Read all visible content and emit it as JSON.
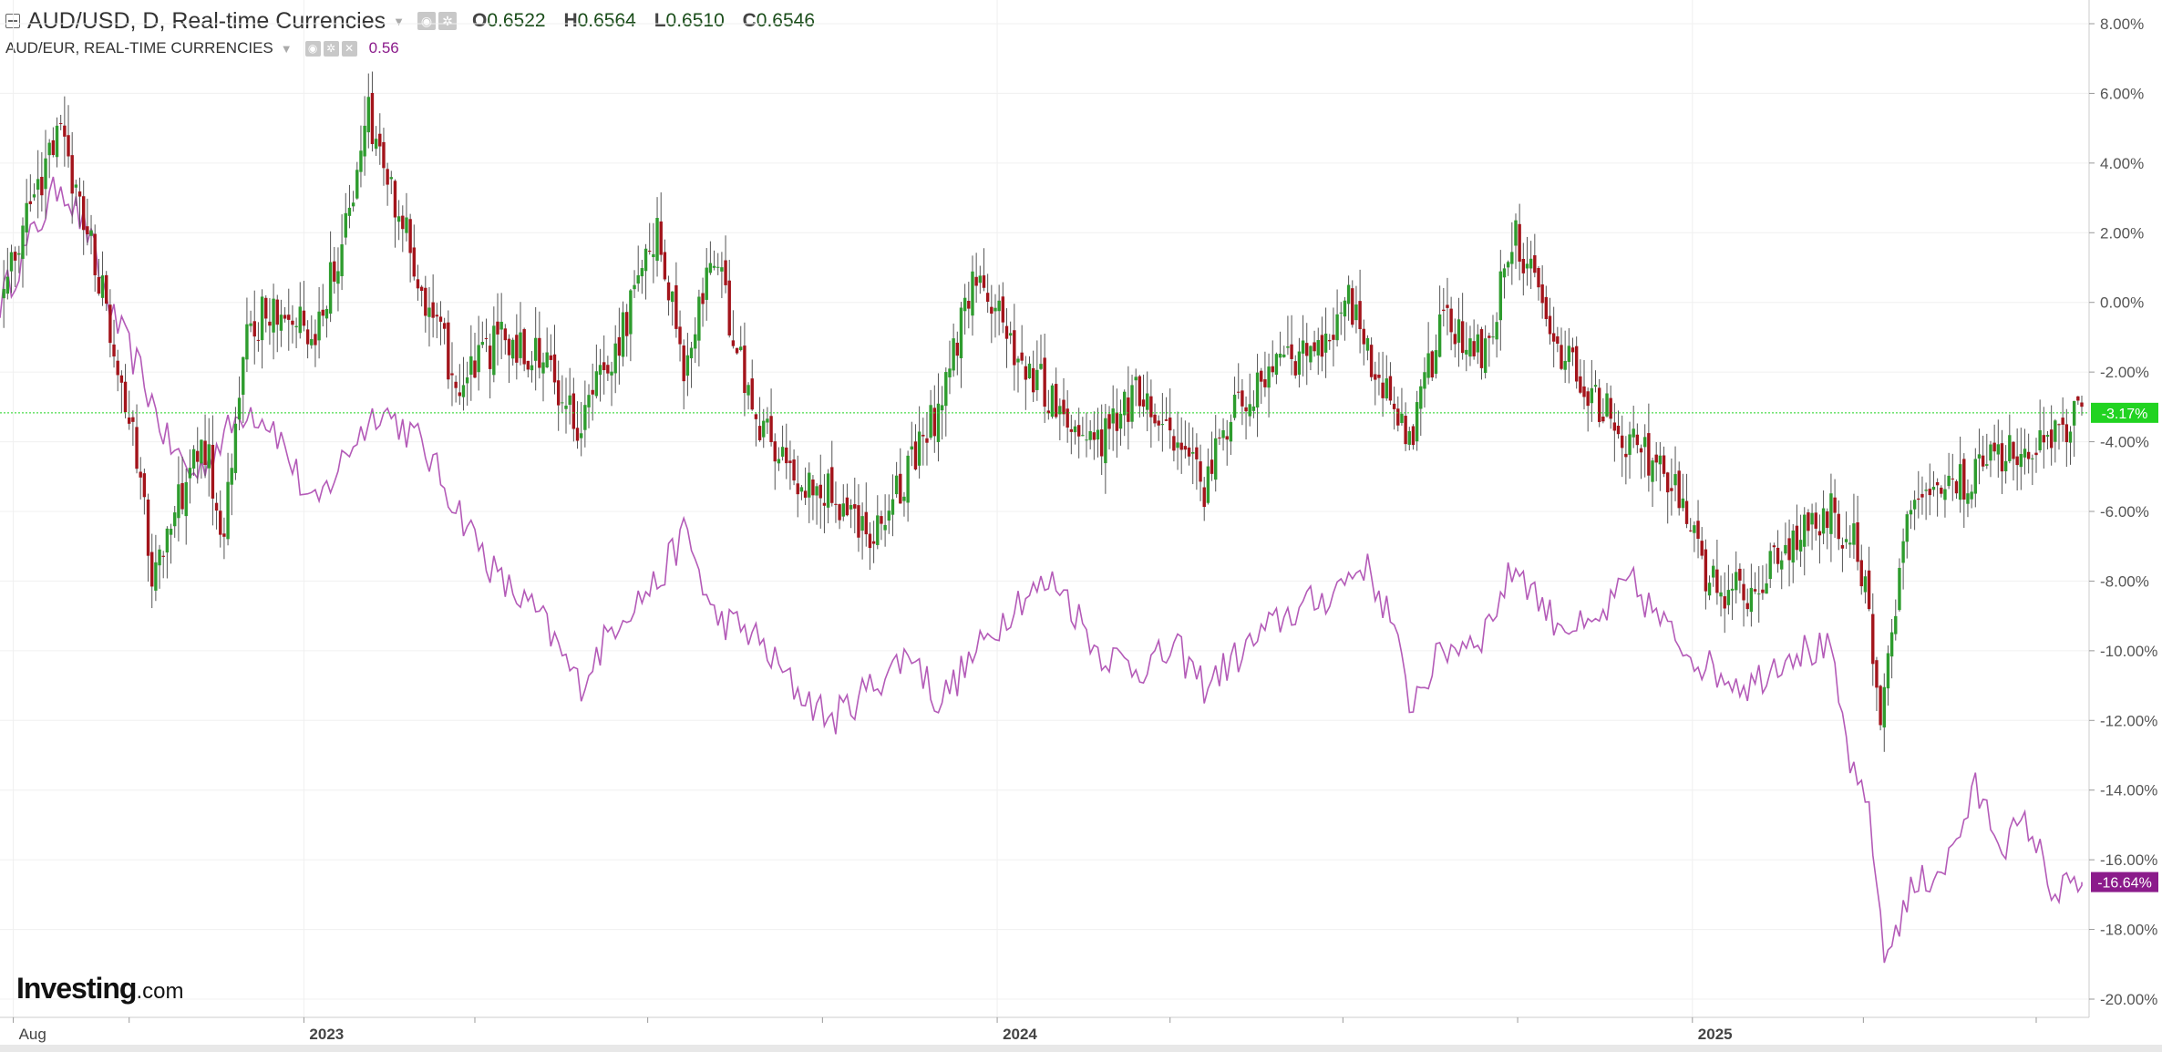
{
  "legend": {
    "symbol": "AUD/USD, D, Real-time Currencies",
    "ohlc": [
      {
        "k": "O",
        "v": "0.6522"
      },
      {
        "k": "H",
        "v": "0.6564"
      },
      {
        "k": "L",
        "v": "0.6510"
      },
      {
        "k": "C",
        "v": "0.6546"
      }
    ],
    "compare_symbol": "AUD/EUR, REAL-TIME CURRENCIES",
    "compare_value": "0.56"
  },
  "logo": {
    "main": "Investing",
    "suffix": ".com"
  },
  "colors": {
    "up": "#2e9c2e",
    "down": "#a3141b",
    "wick": "#555555",
    "compare": "#b45bb8",
    "last_main": "#21d321",
    "last_compare": "#8b1b8b",
    "grid": "#f0f0f0"
  },
  "chart_data": {
    "type": "candlestick-with-comparison-line",
    "y_axis": {
      "unit": "percent",
      "min": -20,
      "max": 8,
      "step": 2,
      "tick_labels": [
        "8.00%",
        "6.00%",
        "4.00%",
        "2.00%",
        "0.00%",
        "-2.00%",
        "-4.00%",
        "-6.00%",
        "-8.00%",
        "-10.00%",
        "-12.00%",
        "-14.00%",
        "-16.00%",
        "-18.00%",
        "-20.00%"
      ]
    },
    "x_axis": {
      "start": "2022-07-25",
      "end": "2025-07-25",
      "labels": [
        {
          "text": "Aug",
          "date": "2022-08-01"
        },
        {
          "text": "2023",
          "date": "2023-01-01"
        },
        {
          "text": "2024",
          "date": "2024-01-01"
        },
        {
          "text": "2025",
          "date": "2025-01-01"
        }
      ],
      "minor_ticks": [
        "2022-10-01",
        "2023-04-01",
        "2023-07-01",
        "2023-10-01",
        "2024-04-01",
        "2024-07-01",
        "2024-10-01",
        "2025-04-01",
        "2025-07-01"
      ]
    },
    "series": [
      {
        "name": "AUD/USD",
        "kind": "candles",
        "last_value": -3.17,
        "last_label": "-3.17%",
        "path": [
          {
            "date": "2022-07-25",
            "v": 0
          },
          {
            "date": "2022-08-12",
            "v": 3
          },
          {
            "date": "2022-08-26",
            "v": 5
          },
          {
            "date": "2022-09-09",
            "v": 2
          },
          {
            "date": "2022-09-23",
            "v": -1
          },
          {
            "date": "2022-10-07",
            "v": -5
          },
          {
            "date": "2022-10-14",
            "v": -8
          },
          {
            "date": "2022-10-28",
            "v": -5.5
          },
          {
            "date": "2022-11-11",
            "v": -4
          },
          {
            "date": "2022-11-18",
            "v": -7
          },
          {
            "date": "2022-12-02",
            "v": -1
          },
          {
            "date": "2022-12-16",
            "v": 0
          },
          {
            "date": "2023-01-06",
            "v": -1
          },
          {
            "date": "2023-01-27",
            "v": 3
          },
          {
            "date": "2023-02-03",
            "v": 5.5
          },
          {
            "date": "2023-02-24",
            "v": 2
          },
          {
            "date": "2023-03-10",
            "v": -0.5
          },
          {
            "date": "2023-03-24",
            "v": -2.5
          },
          {
            "date": "2023-04-14",
            "v": -1
          },
          {
            "date": "2023-05-05",
            "v": -1.5
          },
          {
            "date": "2023-05-26",
            "v": -3.5
          },
          {
            "date": "2023-06-16",
            "v": -1
          },
          {
            "date": "2023-07-07",
            "v": 2
          },
          {
            "date": "2023-07-21",
            "v": -2
          },
          {
            "date": "2023-08-04",
            "v": 1.5
          },
          {
            "date": "2023-08-25",
            "v": -3
          },
          {
            "date": "2023-09-15",
            "v": -5
          },
          {
            "date": "2023-10-06",
            "v": -5.5
          },
          {
            "date": "2023-10-27",
            "v": -6.5
          },
          {
            "date": "2023-11-10",
            "v": -5.5
          },
          {
            "date": "2023-12-01",
            "v": -3
          },
          {
            "date": "2023-12-22",
            "v": 1
          },
          {
            "date": "2024-01-12",
            "v": -1.5
          },
          {
            "date": "2024-02-02",
            "v": -3
          },
          {
            "date": "2024-02-23",
            "v": -4
          },
          {
            "date": "2024-03-15",
            "v": -2.5
          },
          {
            "date": "2024-04-05",
            "v": -4
          },
          {
            "date": "2024-04-19",
            "v": -5.5
          },
          {
            "date": "2024-05-03",
            "v": -3
          },
          {
            "date": "2024-05-24",
            "v": -2
          },
          {
            "date": "2024-06-14",
            "v": -1.5
          },
          {
            "date": "2024-07-05",
            "v": 0
          },
          {
            "date": "2024-07-26",
            "v": -3
          },
          {
            "date": "2024-08-05",
            "v": -4
          },
          {
            "date": "2024-08-23",
            "v": -0.5
          },
          {
            "date": "2024-09-13",
            "v": -1.5
          },
          {
            "date": "2024-09-30",
            "v": 2
          },
          {
            "date": "2024-10-18",
            "v": -1
          },
          {
            "date": "2024-11-08",
            "v": -2.5
          },
          {
            "date": "2024-11-29",
            "v": -4
          },
          {
            "date": "2024-12-20",
            "v": -5
          },
          {
            "date": "2025-01-10",
            "v": -8
          },
          {
            "date": "2025-01-31",
            "v": -8.5
          },
          {
            "date": "2025-02-21",
            "v": -7
          },
          {
            "date": "2025-03-14",
            "v": -6
          },
          {
            "date": "2025-03-28",
            "v": -7
          },
          {
            "date": "2025-04-04",
            "v": -9
          },
          {
            "date": "2025-04-09",
            "v": -12
          },
          {
            "date": "2025-04-25",
            "v": -6
          },
          {
            "date": "2025-05-16",
            "v": -5.5
          },
          {
            "date": "2025-06-06",
            "v": -4.5
          },
          {
            "date": "2025-06-27",
            "v": -4
          },
          {
            "date": "2025-07-11",
            "v": -3.8
          },
          {
            "date": "2025-07-25",
            "v": -3.17
          }
        ]
      },
      {
        "name": "AUD/EUR",
        "kind": "line",
        "last_value": -16.64,
        "last_label": "-16.64%",
        "path": [
          {
            "date": "2022-07-25",
            "v": 0
          },
          {
            "date": "2022-08-12",
            "v": 2
          },
          {
            "date": "2022-08-26",
            "v": 3.5
          },
          {
            "date": "2022-09-09",
            "v": 2
          },
          {
            "date": "2022-09-23",
            "v": -0.5
          },
          {
            "date": "2022-10-07",
            "v": -2
          },
          {
            "date": "2022-10-21",
            "v": -4
          },
          {
            "date": "2022-11-04",
            "v": -5
          },
          {
            "date": "2022-11-18",
            "v": -4
          },
          {
            "date": "2022-12-02",
            "v": -3
          },
          {
            "date": "2022-12-16",
            "v": -3.5
          },
          {
            "date": "2023-01-06",
            "v": -6
          },
          {
            "date": "2023-01-27",
            "v": -4
          },
          {
            "date": "2023-02-10",
            "v": -3
          },
          {
            "date": "2023-03-03",
            "v": -4
          },
          {
            "date": "2023-03-24",
            "v": -6
          },
          {
            "date": "2023-04-14",
            "v": -8
          },
          {
            "date": "2023-05-05",
            "v": -9
          },
          {
            "date": "2023-05-26",
            "v": -11
          },
          {
            "date": "2023-06-16",
            "v": -9
          },
          {
            "date": "2023-07-07",
            "v": -8
          },
          {
            "date": "2023-07-21",
            "v": -6.5
          },
          {
            "date": "2023-08-04",
            "v": -9
          },
          {
            "date": "2023-08-25",
            "v": -9.5
          },
          {
            "date": "2023-09-15",
            "v": -11
          },
          {
            "date": "2023-10-06",
            "v": -12
          },
          {
            "date": "2023-10-27",
            "v": -11
          },
          {
            "date": "2023-11-17",
            "v": -10
          },
          {
            "date": "2023-12-01",
            "v": -11.5
          },
          {
            "date": "2023-12-22",
            "v": -10
          },
          {
            "date": "2024-01-12",
            "v": -8.5
          },
          {
            "date": "2024-02-02",
            "v": -8
          },
          {
            "date": "2024-02-23",
            "v": -10
          },
          {
            "date": "2024-03-15",
            "v": -10.5
          },
          {
            "date": "2024-04-05",
            "v": -10
          },
          {
            "date": "2024-04-19",
            "v": -11
          },
          {
            "date": "2024-05-10",
            "v": -10
          },
          {
            "date": "2024-05-31",
            "v": -9
          },
          {
            "date": "2024-06-21",
            "v": -8.5
          },
          {
            "date": "2024-07-12",
            "v": -7.5
          },
          {
            "date": "2024-07-26",
            "v": -9
          },
          {
            "date": "2024-08-05",
            "v": -11.5
          },
          {
            "date": "2024-08-23",
            "v": -10
          },
          {
            "date": "2024-09-13",
            "v": -9.5
          },
          {
            "date": "2024-09-30",
            "v": -7.5
          },
          {
            "date": "2024-10-18",
            "v": -9
          },
          {
            "date": "2024-11-08",
            "v": -9.5
          },
          {
            "date": "2024-11-29",
            "v": -8
          },
          {
            "date": "2024-12-20",
            "v": -9.5
          },
          {
            "date": "2025-01-10",
            "v": -10.5
          },
          {
            "date": "2025-01-31",
            "v": -11
          },
          {
            "date": "2025-02-21",
            "v": -10
          },
          {
            "date": "2025-03-14",
            "v": -10
          },
          {
            "date": "2025-03-28",
            "v": -14
          },
          {
            "date": "2025-04-04",
            "v": -14.5
          },
          {
            "date": "2025-04-09",
            "v": -17
          },
          {
            "date": "2025-04-11",
            "v": -19
          },
          {
            "date": "2025-04-25",
            "v": -17
          },
          {
            "date": "2025-05-16",
            "v": -16
          },
          {
            "date": "2025-05-30",
            "v": -14
          },
          {
            "date": "2025-06-13",
            "v": -15.5
          },
          {
            "date": "2025-06-27",
            "v": -15
          },
          {
            "date": "2025-07-11",
            "v": -17
          },
          {
            "date": "2025-07-25",
            "v": -16.64
          }
        ]
      }
    ],
    "horizontal_line": {
      "value": -3.17,
      "style": "dotted"
    },
    "grid": true,
    "legend_position": "top-left"
  }
}
